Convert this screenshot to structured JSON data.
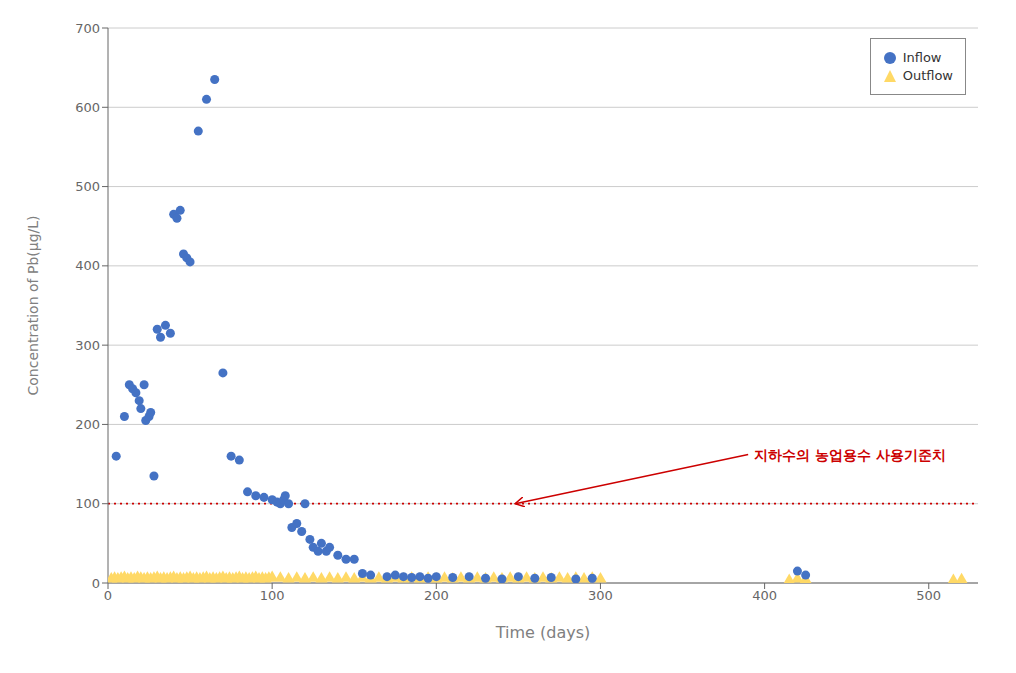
{
  "chart_data": {
    "type": "scatter",
    "xlabel": "Time (days)",
    "ylabel": "Concentration of Pb(μg/L)",
    "xlim": [
      0,
      530
    ],
    "ylim": [
      0,
      700
    ],
    "xticks": [
      0,
      100,
      200,
      300,
      400,
      500
    ],
    "yticks": [
      0,
      100,
      200,
      300,
      400,
      500,
      600,
      700
    ],
    "grid": "y",
    "legend": "upper right",
    "series": [
      {
        "name": "Inflow",
        "color": "#4472c4",
        "marker": "circle",
        "x": [
          5,
          10,
          13,
          15,
          17,
          19,
          20,
          22,
          23,
          25,
          26,
          28,
          30,
          32,
          35,
          38,
          40,
          42,
          44,
          46,
          48,
          50,
          55,
          60,
          65,
          70,
          75,
          80,
          85,
          90,
          95,
          100,
          103,
          105,
          107,
          108,
          110,
          112,
          115,
          118,
          120,
          123,
          125,
          128,
          130,
          133,
          135,
          140,
          145,
          150,
          155,
          160,
          170,
          175,
          180,
          185,
          190,
          195,
          200,
          210,
          220,
          230,
          240,
          250,
          260,
          270,
          285,
          295,
          420,
          425
        ],
        "values": [
          160,
          210,
          250,
          245,
          240,
          230,
          220,
          250,
          205,
          210,
          215,
          135,
          320,
          310,
          325,
          315,
          465,
          460,
          470,
          415,
          410,
          405,
          570,
          610,
          635,
          265,
          160,
          155,
          115,
          110,
          108,
          105,
          102,
          100,
          105,
          110,
          100,
          70,
          75,
          65,
          100,
          55,
          45,
          40,
          50,
          40,
          45,
          35,
          30,
          30,
          12,
          10,
          8,
          10,
          8,
          7,
          8,
          6,
          8,
          7,
          8,
          6,
          5,
          8,
          6,
          7,
          5,
          6,
          15,
          10
        ]
      },
      {
        "name": "Outflow",
        "color": "#ffd966",
        "marker": "triangle",
        "x": [
          2,
          4,
          6,
          8,
          10,
          12,
          14,
          16,
          18,
          20,
          22,
          24,
          26,
          28,
          30,
          32,
          34,
          36,
          38,
          40,
          42,
          44,
          46,
          48,
          50,
          52,
          54,
          56,
          58,
          60,
          62,
          64,
          66,
          68,
          70,
          72,
          74,
          76,
          78,
          80,
          82,
          84,
          86,
          88,
          90,
          92,
          94,
          96,
          98,
          100,
          105,
          110,
          115,
          120,
          125,
          130,
          135,
          140,
          145,
          150,
          155,
          160,
          165,
          170,
          175,
          180,
          185,
          190,
          195,
          200,
          205,
          210,
          215,
          220,
          225,
          230,
          235,
          240,
          245,
          250,
          255,
          260,
          265,
          270,
          275,
          280,
          285,
          290,
          295,
          300,
          415,
          420,
          425,
          515,
          520
        ],
        "values": [
          5,
          6,
          5,
          6,
          7,
          5,
          6,
          5,
          7,
          6,
          5,
          6,
          5,
          6,
          7,
          5,
          6,
          5,
          6,
          7,
          5,
          6,
          5,
          6,
          7,
          5,
          6,
          5,
          6,
          7,
          5,
          6,
          5,
          6,
          7,
          5,
          6,
          5,
          6,
          7,
          5,
          6,
          5,
          6,
          7,
          5,
          6,
          5,
          6,
          7,
          6,
          5,
          6,
          5,
          6,
          5,
          6,
          5,
          6,
          5,
          6,
          5,
          6,
          5,
          6,
          5,
          6,
          5,
          6,
          5,
          6,
          5,
          6,
          5,
          6,
          5,
          6,
          5,
          6,
          5,
          6,
          5,
          6,
          5,
          6,
          5,
          6,
          5,
          6,
          5,
          3,
          5,
          4,
          3,
          4
        ]
      }
    ],
    "reference_lines": [
      {
        "y": 100,
        "color": "#cc0000",
        "line_style": "dotted"
      }
    ],
    "annotations": [
      {
        "text": "지하수의 농업용수 사용기준치",
        "x": 390,
        "y": 162,
        "arrow_x": 248,
        "arrow_y": 100,
        "color": "#cc0000"
      }
    ]
  }
}
